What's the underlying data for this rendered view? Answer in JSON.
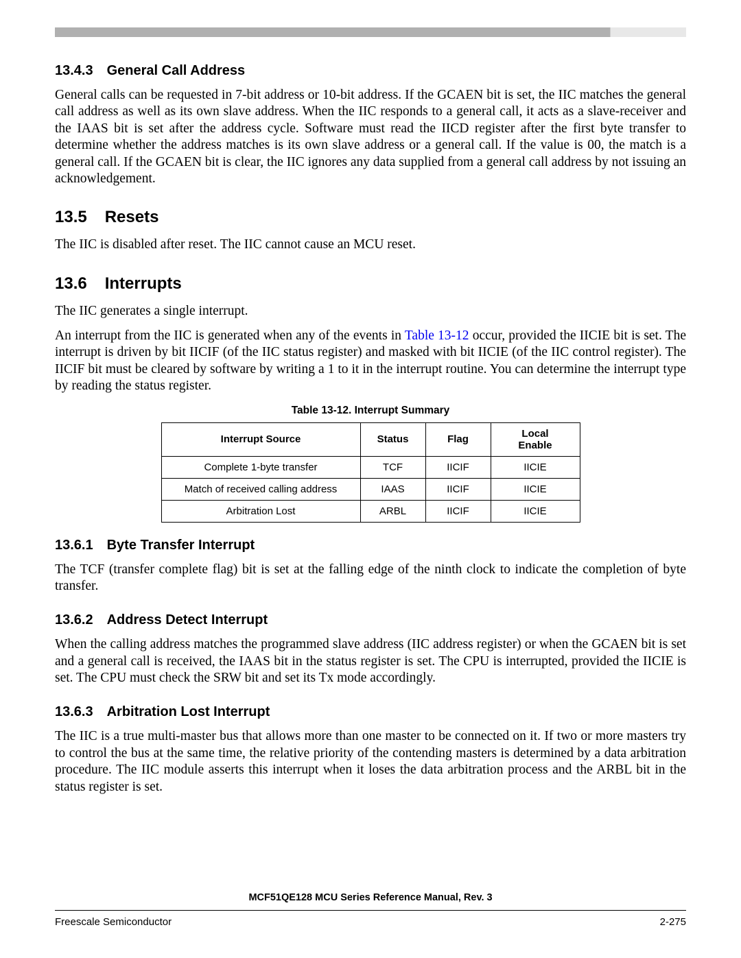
{
  "sections": {
    "s1": {
      "num": "13.4.3",
      "title": "General Call Address",
      "para": "General calls can be requested in 7-bit address or 10-bit address. If the GCAEN bit is set, the IIC matches the general call address as well as its own slave address. When the IIC responds to a general call, it acts as a slave-receiver and the IAAS bit is set after the address cycle. Software must read the IICD register after the first byte transfer to determine whether the address matches is its own slave address or a general call. If the value is 00, the match is a general call. If the GCAEN bit is clear, the IIC ignores any data supplied from a general call address by not issuing an acknowledgement."
    },
    "s2": {
      "num": "13.5",
      "title": "Resets",
      "para": "The IIC is disabled after reset. The IIC cannot cause an MCU reset."
    },
    "s3": {
      "num": "13.6",
      "title": "Interrupts",
      "para1": "The IIC generates a single interrupt.",
      "para2a": "An interrupt from the IIC is generated when any of the events in ",
      "para2_link": "Table 13-12",
      "para2b": " occur, provided the IICIE bit is set. The interrupt is driven by bit IICIF (of the IIC status register) and masked with bit IICIE (of the IIC control register). The IICIF bit must be cleared by software by writing a 1 to it in the interrupt routine. You can determine the interrupt type by reading the status register."
    },
    "s4": {
      "num": "13.6.1",
      "title": "Byte Transfer Interrupt",
      "para": "The TCF (transfer complete flag) bit is set at the falling edge of the ninth clock to indicate the completion of byte transfer."
    },
    "s5": {
      "num": "13.6.2",
      "title": "Address Detect Interrupt",
      "para": "When the calling address matches the programmed slave address (IIC address register) or when the GCAEN bit is set and a general call is received, the IAAS bit in the status register is set. The CPU is interrupted, provided the IICIE is set. The CPU must check the SRW bit and set its Tx mode accordingly."
    },
    "s6": {
      "num": "13.6.3",
      "title": "Arbitration Lost Interrupt",
      "para": "The IIC is a true multi-master bus that allows more than one master to be connected on it. If two or more masters try to control the bus at the same time, the relative priority of the contending masters is determined by a data arbitration procedure. The IIC module asserts this interrupt when it loses the data arbitration process and the ARBL bit in the status register is set."
    }
  },
  "table": {
    "caption": "Table 13-12. Interrupt Summary",
    "headers": [
      "Interrupt Source",
      "Status",
      "Flag",
      "Local Enable"
    ],
    "rows": [
      [
        "Complete 1-byte transfer",
        "TCF",
        "IICIF",
        "IICIE"
      ],
      [
        "Match of received calling address",
        "IAAS",
        "IICIF",
        "IICIE"
      ],
      [
        "Arbitration Lost",
        "ARBL",
        "IICIF",
        "IICIE"
      ]
    ],
    "col_widths": [
      "290px",
      "95px",
      "95px",
      "130px"
    ]
  },
  "footer": {
    "title": "MCF51QE128 MCU Series Reference Manual, Rev. 3",
    "left": "Freescale Semiconductor",
    "right": "2-275"
  },
  "colors": {
    "link": "#0000ee",
    "text": "#000000",
    "bar_dark": "#b0b0b0",
    "bar_light": "#e8e8e8"
  }
}
